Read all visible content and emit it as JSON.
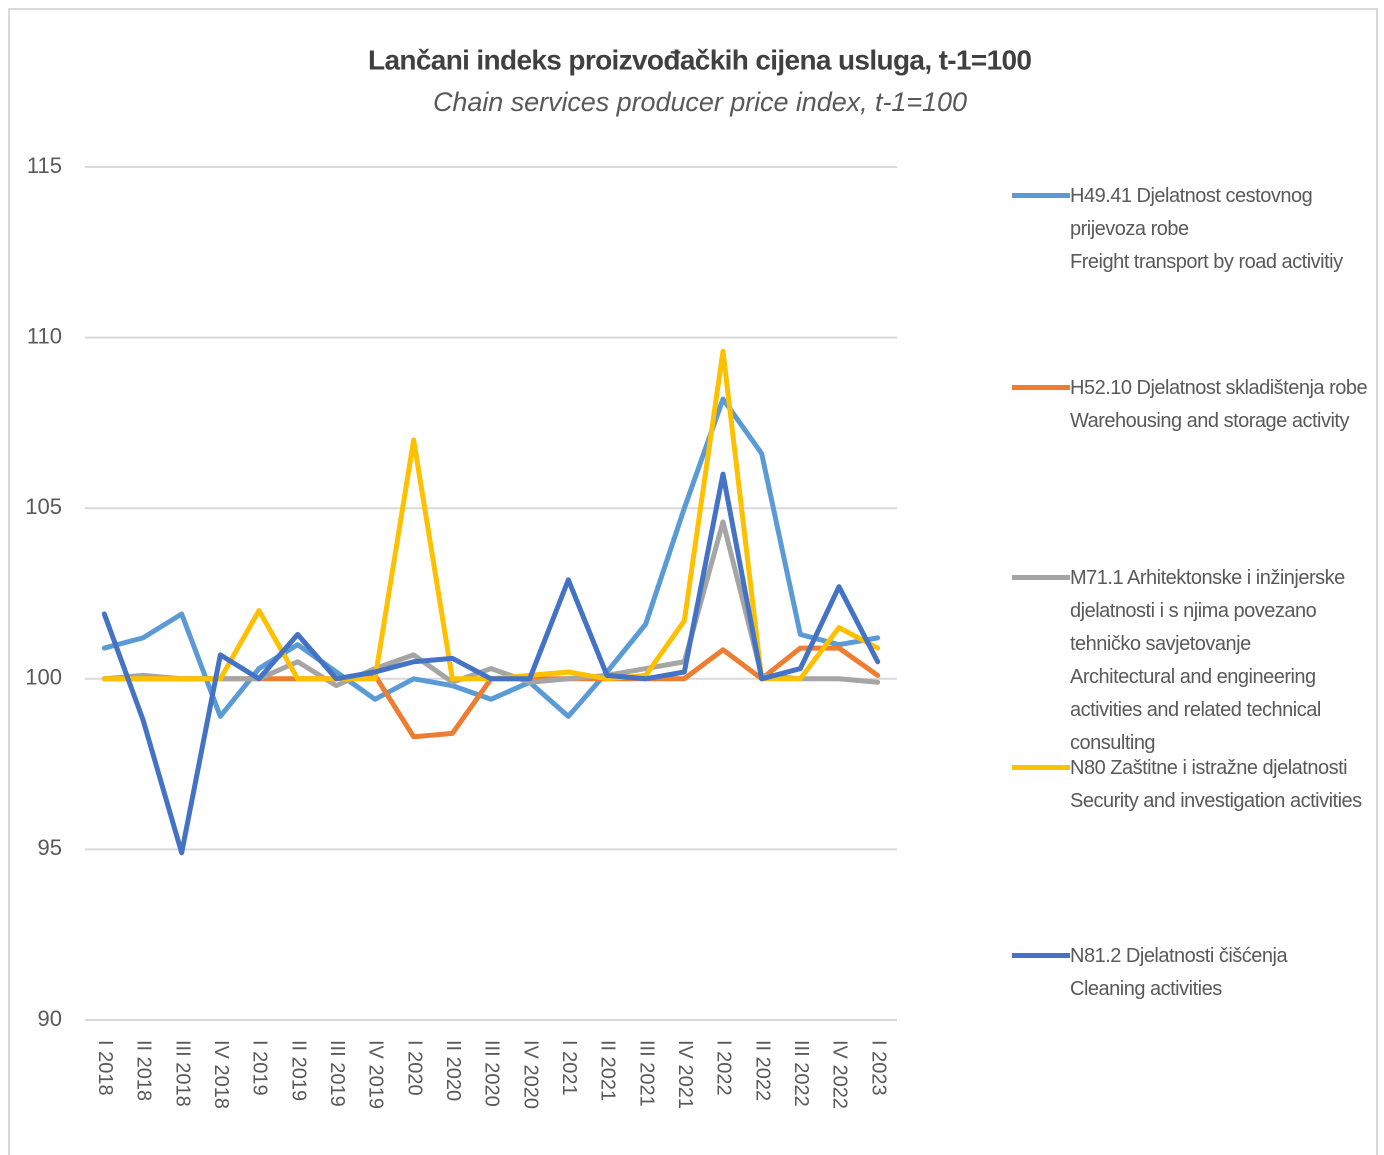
{
  "chart_data": {
    "type": "line",
    "title": "Lančani indeks proizvođačkih cijena usluga, t-1=100",
    "subtitle": "Chain services producer price index, t-1=100",
    "categories": [
      "I 2018",
      "II 2018",
      "III 2018",
      "IV 2018",
      "I 2019",
      "II 2019",
      "III 2019",
      "IV 2019",
      "I 2020",
      "II 2020",
      "III 2020",
      "IV 2020",
      "I 2021",
      "II 2021",
      "III 2021",
      "IV 2021",
      "I 2022",
      "II 2022",
      "III 2022",
      "IV 2022",
      "I 2023"
    ],
    "series": [
      {
        "name": "H49.41 Djelatnost cestovnog prijevoza robe\nFreight transport by road activitiy",
        "color": "#5b9bd5",
        "values": [
          100.9,
          101.2,
          101.9,
          98.9,
          100.3,
          101.0,
          100.2,
          99.4,
          100.0,
          99.8,
          99.4,
          99.9,
          98.9,
          100.2,
          101.6,
          105.0,
          108.2,
          106.6,
          101.3,
          101.0,
          101.2
        ]
      },
      {
        "name": "H52.10 Djelatnost skladištenja robe\nWarehousing and storage activity",
        "color": "#ed7d31",
        "values": [
          100.0,
          100.0,
          100.0,
          100.0,
          100.0,
          100.0,
          100.0,
          100.1,
          98.3,
          98.4,
          100.0,
          100.0,
          100.0,
          100.0,
          100.0,
          100.0,
          100.85,
          100.0,
          100.9,
          100.9,
          100.1
        ]
      },
      {
        "name": "M71.1 Arhitektonske i inžinjerske djelatnosti i s njima povezano tehničko savjetovanje\nArchitectural and engineering activities and related technical consulting",
        "color": "#a5a5a5",
        "values": [
          100.0,
          100.1,
          100.0,
          100.0,
          100.0,
          100.5,
          99.8,
          100.3,
          100.7,
          99.9,
          100.3,
          99.9,
          100.0,
          100.1,
          100.3,
          100.5,
          104.6,
          100.1,
          100.0,
          100.0,
          99.9
        ]
      },
      {
        "name": "N80 Zaštitne i istražne djelatnosti\nSecurity and investigation activities",
        "color": "#ffc000",
        "values": [
          100.0,
          100.0,
          100.0,
          100.0,
          102.0,
          100.0,
          100.0,
          100.0,
          107.0,
          100.0,
          100.0,
          100.1,
          100.2,
          100.0,
          100.1,
          101.7,
          109.6,
          100.0,
          100.0,
          101.5,
          100.9
        ]
      },
      {
        "name": "N81.2 Djelatnosti čišćenja\nCleaning activities",
        "color": "#4472c4",
        "values": [
          101.9,
          98.8,
          94.9,
          100.7,
          100.0,
          101.3,
          100.0,
          100.2,
          100.5,
          100.6,
          100.0,
          100.0,
          102.9,
          100.1,
          100.0,
          100.2,
          106.0,
          100.0,
          100.3,
          102.7,
          100.5
        ]
      }
    ],
    "ylim": [
      90,
      115
    ],
    "yticks": [
      90,
      95,
      100,
      105,
      110,
      115
    ],
    "grid": true,
    "legend": "right"
  }
}
